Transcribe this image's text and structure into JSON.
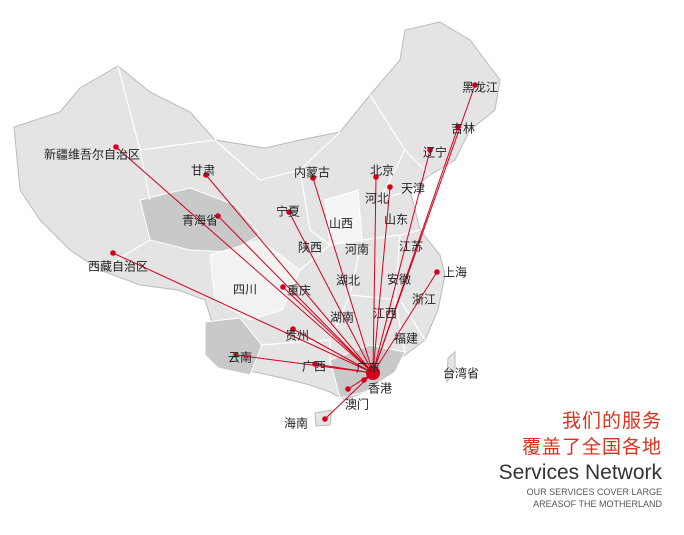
{
  "hub": {
    "name": "广东"
  },
  "colors": {
    "line": "#d6001c",
    "land": "#e4e4e4",
    "land_dark": "#c9c9c9",
    "border": "#ffffff"
  },
  "regions": [
    {
      "name": "黑龙江",
      "dot": true
    },
    {
      "name": "吉林",
      "dot": true
    },
    {
      "name": "辽宁",
      "dot": true
    },
    {
      "name": "北京",
      "dot": true
    },
    {
      "name": "天津",
      "dot": true
    },
    {
      "name": "河北",
      "dot": false
    },
    {
      "name": "山东",
      "dot": false
    },
    {
      "name": "内蒙古",
      "dot": true
    },
    {
      "name": "甘肃",
      "dot": true
    },
    {
      "name": "新疆维吾尔自治区",
      "dot": true
    },
    {
      "name": "宁夏",
      "dot": true
    },
    {
      "name": "青海省",
      "dot": true
    },
    {
      "name": "山西",
      "dot": false
    },
    {
      "name": "陕西",
      "dot": false
    },
    {
      "name": "河南",
      "dot": false
    },
    {
      "name": "江苏",
      "dot": false
    },
    {
      "name": "西藏自治区",
      "dot": true
    },
    {
      "name": "湖北",
      "dot": false
    },
    {
      "name": "安徽",
      "dot": false
    },
    {
      "name": "上海",
      "dot": true
    },
    {
      "name": "四川",
      "dot": false
    },
    {
      "name": "重庆",
      "dot": true
    },
    {
      "name": "浙江",
      "dot": false
    },
    {
      "name": "湖南",
      "dot": false
    },
    {
      "name": "江西",
      "dot": false
    },
    {
      "name": "贵州",
      "dot": true
    },
    {
      "name": "福建",
      "dot": false
    },
    {
      "name": "云南",
      "dot": true
    },
    {
      "name": "广西",
      "dot": true
    },
    {
      "name": "广东",
      "dot": false
    },
    {
      "name": "台湾省",
      "dot": false
    },
    {
      "name": "香港",
      "dot": true
    },
    {
      "name": "澳门",
      "dot": true
    },
    {
      "name": "海南",
      "dot": true
    }
  ],
  "side": {
    "cn_line1": "我们的服务",
    "cn_line2": "覆盖了全国各地",
    "en_title": "Services Network",
    "en_sub1": "OUR SERVICES COVER LARGE",
    "en_sub2": "AREASOF THE MOTHERLAND"
  }
}
